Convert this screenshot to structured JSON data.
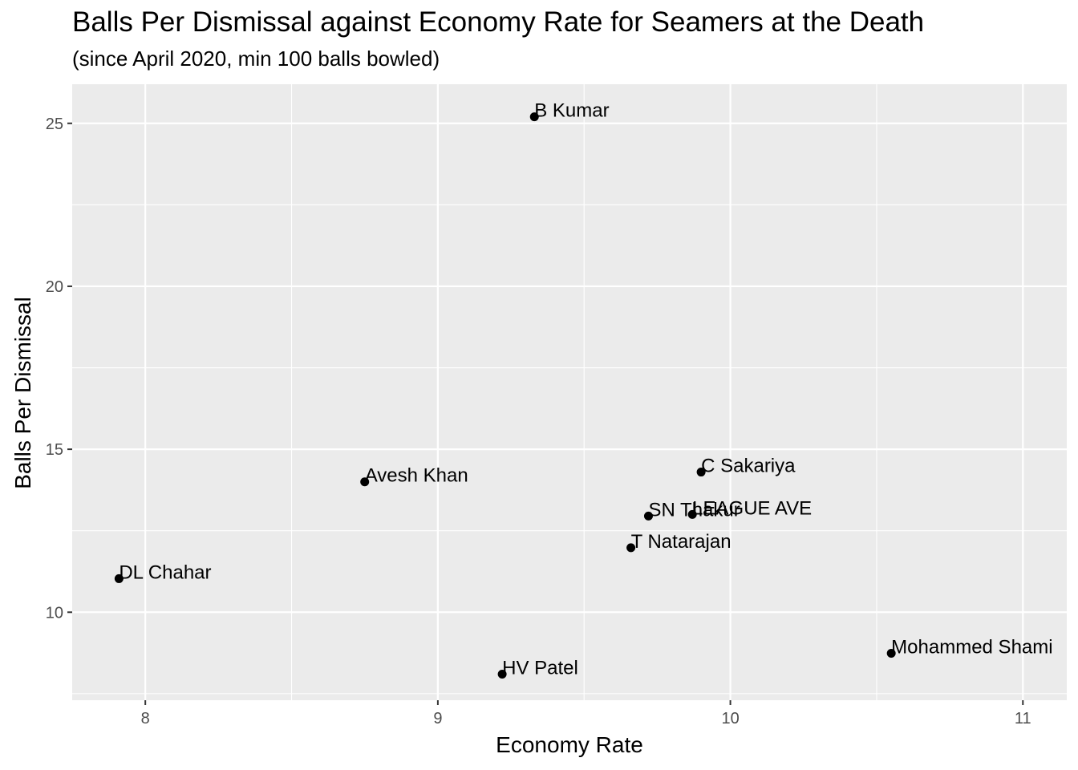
{
  "chart_data": {
    "type": "scatter",
    "title": "Balls Per Dismissal against Economy Rate for Seamers at the Death",
    "subtitle": "(since April 2020, min 100 balls bowled)",
    "xlabel": "Economy Rate",
    "ylabel": "Balls Per Dismissal",
    "xlim": [
      7.75,
      11.15
    ],
    "ylim": [
      7.3,
      26.2
    ],
    "xticks": [
      8,
      9,
      10,
      11
    ],
    "xtick_labels": [
      "8",
      "9",
      "10",
      "11"
    ],
    "yticks": [
      10,
      15,
      20,
      25
    ],
    "ytick_labels": [
      "10",
      "15",
      "20",
      "25"
    ],
    "grid": true,
    "points": [
      {
        "label": "B Kumar",
        "x": 9.33,
        "y": 25.2
      },
      {
        "label": "C Sakariya",
        "x": 9.9,
        "y": 14.3
      },
      {
        "label": "Avesh Khan",
        "x": 8.75,
        "y": 14.0
      },
      {
        "label": "SN Thakur",
        "x": 9.72,
        "y": 12.95
      },
      {
        "label": "LEAGUE AVE",
        "x": 9.87,
        "y": 13.0
      },
      {
        "label": "T Natarajan",
        "x": 9.66,
        "y": 11.98
      },
      {
        "label": "DL Chahar",
        "x": 7.91,
        "y": 11.03
      },
      {
        "label": "Mohammed Shami",
        "x": 10.55,
        "y": 8.74
      },
      {
        "label": "HV Patel",
        "x": 9.22,
        "y": 8.1
      }
    ]
  }
}
